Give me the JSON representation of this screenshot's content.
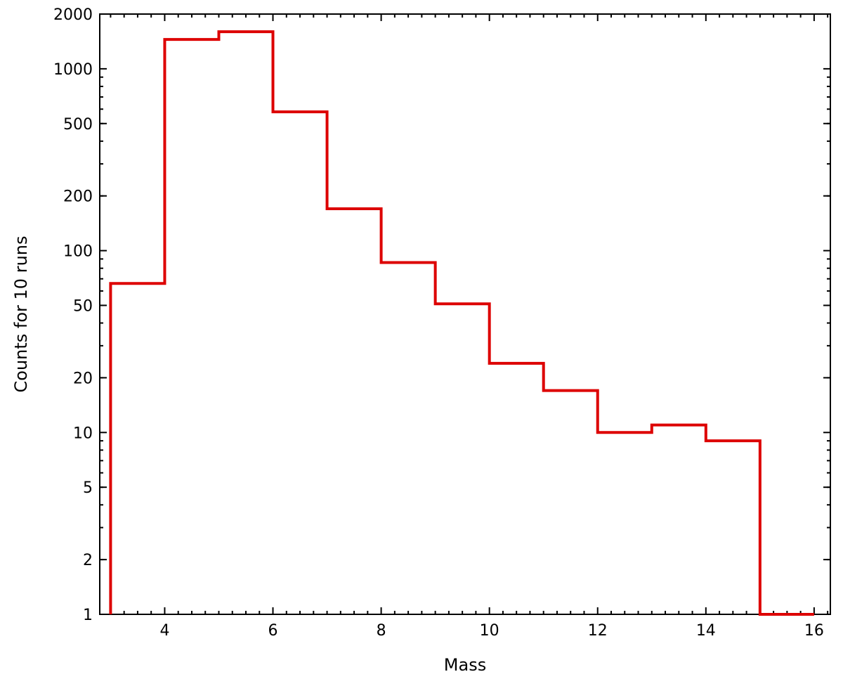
{
  "chart_data": {
    "type": "histogram",
    "xlabel": "Mass",
    "ylabel": "Counts for 10 runs",
    "xlim": [
      2.8,
      16.3
    ],
    "ylim": [
      1,
      2000
    ],
    "yscale": "log",
    "grid": false,
    "x_ticks": [
      4,
      6,
      8,
      10,
      12,
      14,
      16
    ],
    "x_tick_labels": [
      "4",
      "6",
      "8",
      "10",
      "12",
      "14",
      "16"
    ],
    "y_ticks": [
      1,
      2,
      5,
      10,
      20,
      50,
      100,
      200,
      500,
      1000,
      2000
    ],
    "y_tick_labels": [
      "1",
      "2",
      "5",
      "10",
      "20",
      "50",
      "100",
      "200",
      "500",
      "1000",
      "2000"
    ],
    "bin_edges": [
      3,
      4,
      5,
      6,
      7,
      8,
      9,
      10,
      11,
      12,
      13,
      14,
      15,
      16
    ],
    "values": [
      66,
      1450,
      1600,
      580,
      170,
      86,
      51,
      24,
      17,
      10,
      11,
      9,
      1
    ],
    "line_color": "#dd0000"
  }
}
